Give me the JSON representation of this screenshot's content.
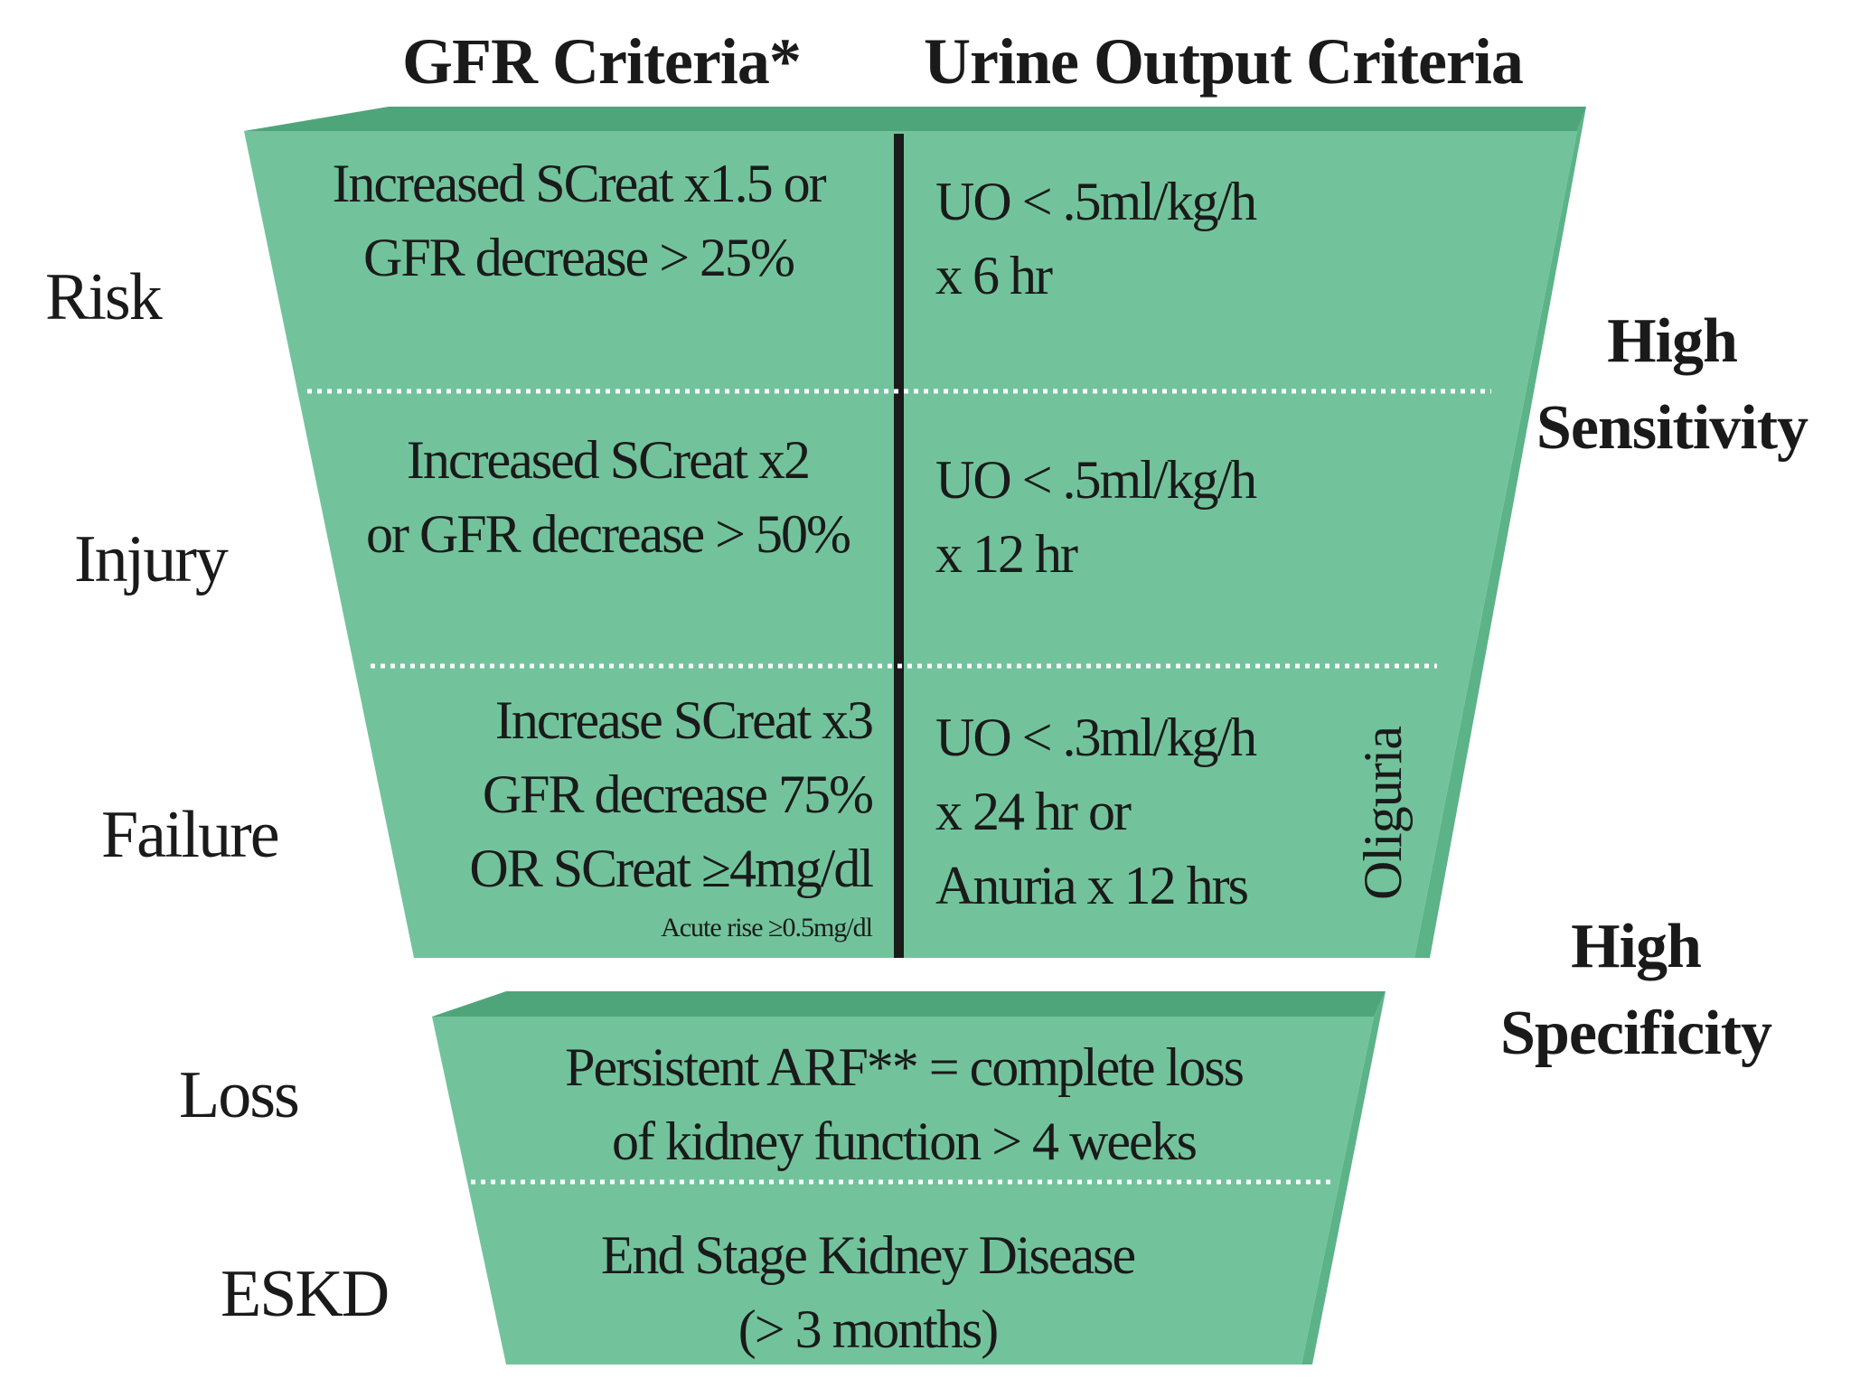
{
  "headers": {
    "gfr": "GFR Criteria*",
    "urine": "Urine Output Criteria"
  },
  "stages": {
    "risk": "Risk",
    "injury": "Injury",
    "failure": "Failure",
    "loss": "Loss",
    "eskd": "ESKD"
  },
  "gfr_criteria": {
    "risk": [
      "Increased SCreat x1.5 or",
      "GFR decrease > 25%"
    ],
    "injury": [
      "Increased SCreat x2",
      "or GFR decrease > 50%"
    ],
    "failure": [
      "Increase SCreat x3",
      "GFR decrease 75%",
      "OR SCreat ≥4mg/dl"
    ],
    "failure_note": "Acute rise ≥0.5mg/dl"
  },
  "urine_criteria": {
    "risk": [
      "UO < .5ml/kg/h",
      "x 6 hr"
    ],
    "injury": [
      "UO < .5ml/kg/h",
      "x 12 hr"
    ],
    "failure": [
      "UO < .3ml/kg/h",
      "x 24 hr or",
      "Anuria x 12 hrs"
    ]
  },
  "oliguria_label": "Oliguria",
  "outcome_criteria": {
    "loss": [
      "Persistent ARF** = complete loss",
      "of kidney function > 4 weeks"
    ],
    "eskd": [
      "End Stage Kidney Disease",
      "(> 3 months)"
    ]
  },
  "side_labels": {
    "sensitivity": [
      "High",
      "Sensitivity"
    ],
    "specificity": [
      "High",
      "Specificity"
    ]
  },
  "colors": {
    "funnel_face": "#72c39c",
    "funnel_top": "#4fa57a",
    "funnel_edge": "#5cb388",
    "divider": "#1a1a1a",
    "dotted_line": "#ffffff",
    "text": "#1a1a1a"
  }
}
